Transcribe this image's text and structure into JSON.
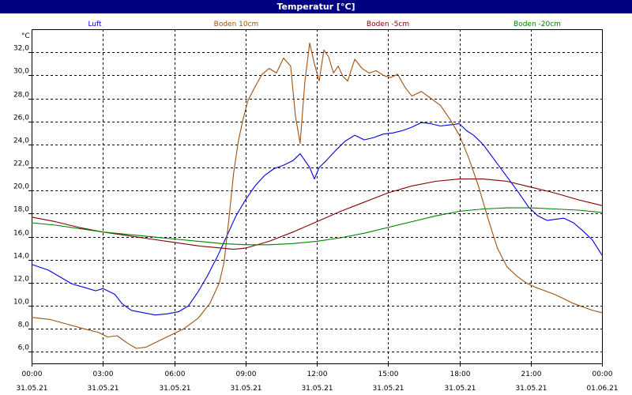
{
  "window": {
    "title": "Temperatur [°C]"
  },
  "chart_data": {
    "type": "line",
    "title": "Temperatur [°C]",
    "ylabel": "°C",
    "ylim": [
      5.0,
      34.0
    ],
    "yticks": [
      "6,0",
      "8,0",
      "10,0",
      "12,0",
      "14,0",
      "16,0",
      "18,0",
      "20,0",
      "22,0",
      "24,0",
      "26,0",
      "28,0",
      "30,0",
      "32,0"
    ],
    "xlim": [
      0,
      24
    ],
    "xticks": [
      {
        "time": "00:00",
        "date": "31.05.21"
      },
      {
        "time": "03:00",
        "date": "31.05.21"
      },
      {
        "time": "06:00",
        "date": "31.05.21"
      },
      {
        "time": "09:00",
        "date": "31.05.21"
      },
      {
        "time": "12:00",
        "date": "31.05.21"
      },
      {
        "time": "15:00",
        "date": "31.05.21"
      },
      {
        "time": "18:00",
        "date": "31.05.21"
      },
      {
        "time": "21:00",
        "date": "31.05.21"
      },
      {
        "time": "00:00",
        "date": "01.06.21"
      }
    ],
    "grid": true,
    "legend": "top",
    "series": [
      {
        "name": "Luft",
        "color": "#0000e0",
        "x": [
          0,
          0.7,
          1.2,
          1.7,
          2.2,
          2.7,
          3.0,
          3.5,
          3.8,
          4.2,
          4.7,
          5.2,
          5.7,
          6.2,
          6.6,
          7.0,
          7.4,
          7.8,
          8.2,
          8.6,
          9.0,
          9.4,
          9.8,
          10.2,
          10.6,
          11.0,
          11.3,
          11.7,
          11.9,
          12.1,
          12.4,
          12.8,
          13.2,
          13.6,
          14.0,
          14.4,
          14.8,
          15.2,
          15.6,
          16.0,
          16.4,
          16.8,
          17.2,
          17.6,
          18.0,
          18.3,
          18.6,
          19.0,
          19.5,
          20.0,
          20.5,
          20.9,
          21.3,
          21.7,
          22.0,
          22.4,
          22.8,
          23.2,
          23.6,
          24.0
        ],
        "y": [
          13.6,
          13.1,
          12.5,
          11.9,
          11.6,
          11.3,
          11.5,
          11.0,
          10.2,
          9.6,
          9.4,
          9.2,
          9.3,
          9.5,
          10.0,
          11.2,
          12.6,
          14.2,
          16.0,
          17.8,
          19.2,
          20.4,
          21.3,
          21.9,
          22.2,
          22.6,
          23.2,
          22.0,
          21.0,
          22.0,
          22.6,
          23.5,
          24.3,
          24.8,
          24.4,
          24.6,
          24.9,
          25.0,
          25.2,
          25.5,
          25.9,
          25.8,
          25.6,
          25.7,
          25.8,
          25.2,
          24.8,
          24.0,
          22.6,
          21.2,
          19.8,
          18.6,
          17.8,
          17.4,
          17.5,
          17.6,
          17.2,
          16.5,
          15.7,
          14.4
        ]
      },
      {
        "name": "Boden 10cm",
        "color": "#a05010",
        "x": [
          0,
          0.8,
          1.5,
          2.2,
          2.8,
          3.2,
          3.6,
          4.0,
          4.4,
          4.8,
          5.2,
          5.8,
          6.4,
          7.0,
          7.5,
          7.9,
          8.1,
          8.3,
          8.5,
          8.7,
          8.9,
          9.1,
          9.4,
          9.7,
          10.0,
          10.3,
          10.6,
          10.9,
          11.1,
          11.3,
          11.5,
          11.7,
          11.9,
          12.1,
          12.3,
          12.5,
          12.7,
          12.9,
          13.1,
          13.3,
          13.6,
          13.9,
          14.2,
          14.5,
          14.8,
          15.1,
          15.4,
          15.7,
          16.0,
          16.4,
          16.8,
          17.2,
          17.6,
          18.0,
          18.4,
          18.8,
          19.2,
          19.6,
          20.0,
          20.4,
          20.8,
          21.2,
          21.6,
          22.0,
          22.4,
          22.8,
          23.2,
          23.6,
          24.0
        ],
        "y": [
          9.0,
          8.8,
          8.4,
          8.0,
          7.7,
          7.3,
          7.4,
          6.8,
          6.3,
          6.4,
          6.8,
          7.4,
          8.0,
          8.9,
          10.2,
          12.0,
          13.8,
          17.5,
          21.5,
          24.3,
          26.2,
          27.8,
          29.0,
          30.1,
          30.6,
          30.2,
          31.5,
          30.8,
          26.5,
          24.1,
          29.5,
          32.8,
          31.0,
          29.5,
          32.2,
          31.6,
          30.2,
          30.8,
          29.9,
          29.5,
          31.4,
          30.6,
          30.2,
          30.4,
          30.0,
          29.8,
          30.1,
          29.0,
          28.2,
          28.6,
          28.0,
          27.4,
          26.2,
          24.8,
          22.8,
          20.4,
          17.6,
          15.0,
          13.4,
          12.6,
          12.0,
          11.6,
          11.3,
          11.0,
          10.6,
          10.2,
          9.9,
          9.6,
          9.4
        ]
      },
      {
        "name": "Boden -5cm",
        "color": "#800000",
        "x": [
          0,
          1,
          2,
          3,
          4,
          5,
          6,
          7,
          8,
          8.5,
          9,
          10,
          11,
          12,
          13,
          14,
          15,
          16,
          17,
          18,
          19,
          20,
          21,
          22,
          23,
          24
        ],
        "y": [
          17.7,
          17.3,
          16.8,
          16.4,
          16.1,
          15.8,
          15.5,
          15.2,
          15.0,
          14.9,
          15.0,
          15.6,
          16.4,
          17.3,
          18.2,
          19.0,
          19.8,
          20.4,
          20.8,
          21.0,
          21.0,
          20.8,
          20.3,
          19.8,
          19.2,
          18.7
        ]
      },
      {
        "name": "Boden -20cm",
        "color": "#008000",
        "x": [
          0,
          1,
          2,
          3,
          4,
          5,
          6,
          7,
          8,
          9,
          10,
          11,
          12,
          13,
          14,
          15,
          16,
          17,
          18,
          19,
          20,
          21,
          22,
          23,
          24
        ],
        "y": [
          17.2,
          17.0,
          16.7,
          16.4,
          16.2,
          16.0,
          15.8,
          15.6,
          15.4,
          15.3,
          15.3,
          15.4,
          15.6,
          15.9,
          16.3,
          16.8,
          17.3,
          17.8,
          18.2,
          18.4,
          18.5,
          18.5,
          18.4,
          18.3,
          18.1
        ]
      }
    ]
  }
}
